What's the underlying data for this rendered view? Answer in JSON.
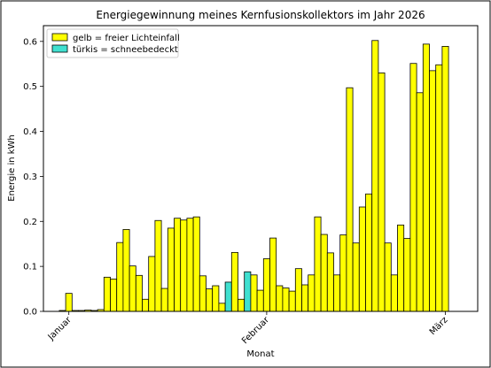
{
  "chart_data": {
    "type": "bar",
    "title": "Energiegewinnung meines Kernfusionskollektors im Jahr 2026",
    "xlabel": "Monat",
    "ylabel": "Energie in kWh",
    "ylim": [
      0,
      0.635
    ],
    "yticks": [
      0.0,
      0.1,
      0.2,
      0.3,
      0.4,
      0.5,
      0.6
    ],
    "ytick_labels": [
      "0.0",
      "0.1",
      "0.2",
      "0.3",
      "0.4",
      "0.5",
      "0.6"
    ],
    "grid": false,
    "legend_position": "top-left",
    "month_ticks": [
      {
        "label": "Januar",
        "day": 1
      },
      {
        "label": "Februar",
        "day": 32
      },
      {
        "label": "März",
        "day": 60
      }
    ],
    "series": [
      {
        "name": "gelb = freier Lichteinfall",
        "color": "#ffff00"
      },
      {
        "name": "türkis = schneebedeckt",
        "color": "#40e0d0"
      }
    ],
    "days": [
      {
        "day": 0,
        "value": 0.002,
        "snow": false
      },
      {
        "day": 1,
        "value": 0.04,
        "snow": false
      },
      {
        "day": 2,
        "value": 0.002,
        "snow": false
      },
      {
        "day": 3,
        "value": 0.002,
        "snow": false
      },
      {
        "day": 4,
        "value": 0.003,
        "snow": false
      },
      {
        "day": 5,
        "value": 0.002,
        "snow": false
      },
      {
        "day": 6,
        "value": 0.004,
        "snow": false
      },
      {
        "day": 7,
        "value": 0.076,
        "snow": false
      },
      {
        "day": 8,
        "value": 0.072,
        "snow": false
      },
      {
        "day": 9,
        "value": 0.153,
        "snow": false
      },
      {
        "day": 10,
        "value": 0.182,
        "snow": false
      },
      {
        "day": 11,
        "value": 0.101,
        "snow": false
      },
      {
        "day": 12,
        "value": 0.08,
        "snow": false
      },
      {
        "day": 13,
        "value": 0.027,
        "snow": false
      },
      {
        "day": 14,
        "value": 0.122,
        "snow": false
      },
      {
        "day": 15,
        "value": 0.202,
        "snow": false
      },
      {
        "day": 16,
        "value": 0.051,
        "snow": false
      },
      {
        "day": 17,
        "value": 0.185,
        "snow": false
      },
      {
        "day": 18,
        "value": 0.207,
        "snow": false
      },
      {
        "day": 19,
        "value": 0.203,
        "snow": false
      },
      {
        "day": 20,
        "value": 0.207,
        "snow": false
      },
      {
        "day": 21,
        "value": 0.21,
        "snow": false
      },
      {
        "day": 22,
        "value": 0.079,
        "snow": false
      },
      {
        "day": 23,
        "value": 0.05,
        "snow": false
      },
      {
        "day": 24,
        "value": 0.057,
        "snow": false
      },
      {
        "day": 25,
        "value": 0.018,
        "snow": false
      },
      {
        "day": 26,
        "value": 0.065,
        "snow": true
      },
      {
        "day": 27,
        "value": 0.131,
        "snow": false
      },
      {
        "day": 28,
        "value": 0.027,
        "snow": false
      },
      {
        "day": 29,
        "value": 0.088,
        "snow": true
      },
      {
        "day": 30,
        "value": 0.081,
        "snow": false
      },
      {
        "day": 31,
        "value": 0.047,
        "snow": false
      },
      {
        "day": 32,
        "value": 0.117,
        "snow": false
      },
      {
        "day": 33,
        "value": 0.163,
        "snow": false
      },
      {
        "day": 34,
        "value": 0.057,
        "snow": false
      },
      {
        "day": 35,
        "value": 0.052,
        "snow": false
      },
      {
        "day": 36,
        "value": 0.045,
        "snow": false
      },
      {
        "day": 37,
        "value": 0.095,
        "snow": false
      },
      {
        "day": 38,
        "value": 0.059,
        "snow": false
      },
      {
        "day": 39,
        "value": 0.081,
        "snow": false
      },
      {
        "day": 40,
        "value": 0.21,
        "snow": false
      },
      {
        "day": 41,
        "value": 0.171,
        "snow": false
      },
      {
        "day": 42,
        "value": 0.13,
        "snow": false
      },
      {
        "day": 43,
        "value": 0.081,
        "snow": false
      },
      {
        "day": 44,
        "value": 0.17,
        "snow": false
      },
      {
        "day": 45,
        "value": 0.497,
        "snow": false
      },
      {
        "day": 46,
        "value": 0.152,
        "snow": false
      },
      {
        "day": 47,
        "value": 0.232,
        "snow": false
      },
      {
        "day": 48,
        "value": 0.261,
        "snow": false
      },
      {
        "day": 49,
        "value": 0.602,
        "snow": false
      },
      {
        "day": 50,
        "value": 0.53,
        "snow": false
      },
      {
        "day": 51,
        "value": 0.152,
        "snow": false
      },
      {
        "day": 52,
        "value": 0.081,
        "snow": false
      },
      {
        "day": 53,
        "value": 0.192,
        "snow": false
      },
      {
        "day": 54,
        "value": 0.162,
        "snow": false
      },
      {
        "day": 55,
        "value": 0.551,
        "snow": false
      },
      {
        "day": 56,
        "value": 0.486,
        "snow": false
      },
      {
        "day": 57,
        "value": 0.594,
        "snow": false
      },
      {
        "day": 58,
        "value": 0.535,
        "snow": false
      },
      {
        "day": 59,
        "value": 0.548,
        "snow": false
      },
      {
        "day": 60,
        "value": 0.589,
        "snow": false
      }
    ]
  }
}
